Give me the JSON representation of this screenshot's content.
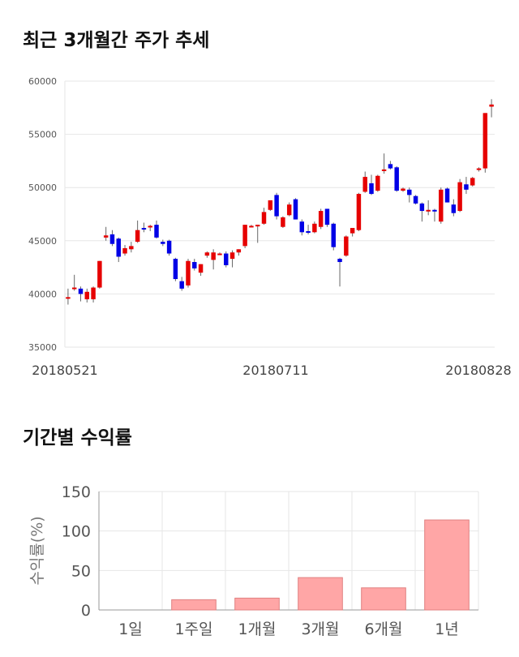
{
  "sections": {
    "price_trend_title": "최근 3개월간 주가 추세",
    "returns_title": "기간별 수익률"
  },
  "colors": {
    "up": "#e60000",
    "down": "#0000e6",
    "bar_fill": "#ffa6a6",
    "bar_stroke": "#e08080",
    "grid": "#e6e6e6"
  },
  "chart_data": [
    {
      "type": "candlestick",
      "title": "최근 3개월간 주가 추세",
      "ylim": [
        35000,
        60000
      ],
      "yticks": [
        35000,
        40000,
        45000,
        50000,
        55000,
        60000
      ],
      "xtick_labels": [
        "20180521",
        "20180711",
        "20180828"
      ],
      "candles": [
        [
          39700,
          40500,
          39000,
          39700
        ],
        [
          40600,
          41800,
          40300,
          40600
        ],
        [
          40500,
          40700,
          39300,
          40000
        ],
        [
          39500,
          40500,
          39200,
          40200
        ],
        [
          39500,
          40700,
          39200,
          40600
        ],
        [
          40600,
          43100,
          40500,
          43100
        ],
        [
          45300,
          46300,
          45000,
          45500
        ],
        [
          45600,
          46000,
          44500,
          44700
        ],
        [
          45200,
          45300,
          43000,
          43500
        ],
        [
          43800,
          44600,
          43600,
          44300
        ],
        [
          44200,
          44900,
          43900,
          44500
        ],
        [
          44900,
          46900,
          44800,
          46000
        ],
        [
          46200,
          46700,
          45800,
          46100
        ],
        [
          46300,
          46500,
          45900,
          46400
        ],
        [
          46500,
          46900,
          45200,
          45300
        ],
        [
          44900,
          45100,
          44500,
          44700
        ],
        [
          45000,
          45100,
          43600,
          43800
        ],
        [
          43300,
          43400,
          41200,
          41400
        ],
        [
          41200,
          41600,
          40300,
          40500
        ],
        [
          40800,
          43300,
          40600,
          43100
        ],
        [
          43000,
          43300,
          42200,
          42400
        ],
        [
          42000,
          42800,
          41700,
          42800
        ],
        [
          43600,
          44000,
          43400,
          43900
        ],
        [
          43200,
          44200,
          42300,
          43900
        ],
        [
          43800,
          43900,
          43700,
          43800
        ],
        [
          43800,
          44000,
          42500,
          42700
        ],
        [
          43300,
          44100,
          42500,
          43900
        ],
        [
          43900,
          44200,
          43600,
          44200
        ],
        [
          44500,
          46500,
          44300,
          46500
        ],
        [
          46400,
          46500,
          46300,
          46400
        ],
        [
          46400,
          46500,
          44800,
          46500
        ],
        [
          46600,
          48100,
          46500,
          47700
        ],
        [
          47900,
          48800,
          47800,
          48800
        ],
        [
          49300,
          49500,
          47000,
          47300
        ],
        [
          46300,
          47300,
          46200,
          47200
        ],
        [
          47400,
          48600,
          47300,
          48400
        ],
        [
          48900,
          49000,
          47000,
          47000
        ],
        [
          46800,
          47000,
          45500,
          45800
        ],
        [
          45900,
          46500,
          45600,
          45800
        ],
        [
          45800,
          46800,
          45700,
          46600
        ],
        [
          46300,
          48000,
          46100,
          47800
        ],
        [
          48000,
          48000,
          46300,
          46500
        ],
        [
          46600,
          46700,
          44100,
          44400
        ],
        [
          43300,
          43400,
          40700,
          43000
        ],
        [
          43600,
          45500,
          43500,
          45400
        ],
        [
          45700,
          46100,
          45400,
          46200
        ],
        [
          46000,
          49500,
          45900,
          49400
        ],
        [
          49600,
          51500,
          49500,
          51000
        ],
        [
          50400,
          51200,
          49300,
          49400
        ],
        [
          49700,
          51200,
          49600,
          51100
        ],
        [
          51600,
          53200,
          51300,
          51700
        ],
        [
          52200,
          52500,
          51700,
          51800
        ],
        [
          51900,
          52000,
          49600,
          49700
        ],
        [
          49700,
          50000,
          49600,
          49900
        ],
        [
          49800,
          50000,
          48600,
          49300
        ],
        [
          49200,
          49300,
          48400,
          48500
        ],
        [
          48500,
          48600,
          46800,
          47800
        ],
        [
          47800,
          48800,
          47400,
          47900
        ],
        [
          47900,
          48000,
          46800,
          47800
        ],
        [
          46800,
          50000,
          46600,
          49800
        ],
        [
          49900,
          50000,
          48600,
          48600
        ],
        [
          48400,
          48900,
          47300,
          47600
        ],
        [
          47800,
          50800,
          47700,
          50500
        ],
        [
          50300,
          51000,
          49400,
          49800
        ],
        [
          50200,
          51000,
          50100,
          50900
        ],
        [
          51700,
          51900,
          51500,
          51800
        ],
        [
          51800,
          57000,
          51400,
          57000
        ],
        [
          57600,
          58300,
          56600,
          57800
        ]
      ]
    },
    {
      "type": "bar",
      "ylabel": "수익률(%)",
      "ylim": [
        0,
        150
      ],
      "yticks": [
        0,
        50,
        100,
        150
      ],
      "categories": [
        "1일",
        "1주일",
        "1개월",
        "3개월",
        "6개월",
        "1년"
      ],
      "values": [
        0,
        13,
        15,
        41,
        28,
        114
      ]
    }
  ]
}
